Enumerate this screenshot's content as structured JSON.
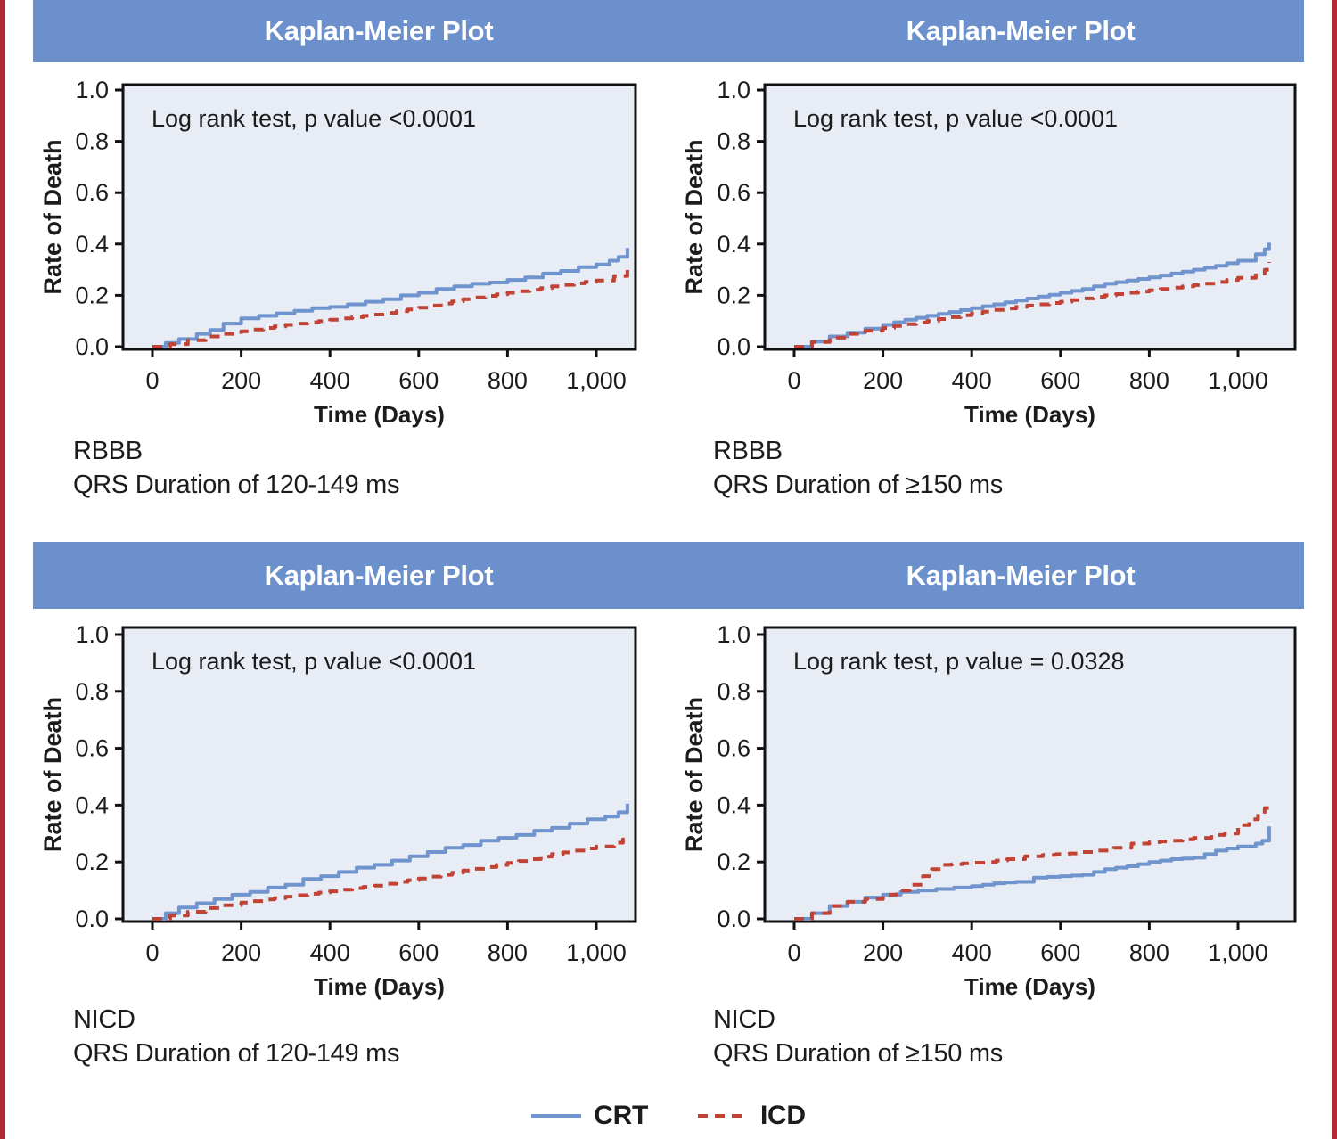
{
  "colors": {
    "border_red": "#b02b35",
    "banner_blue": "#6b90cb",
    "plot_background": "#e8ecf5",
    "frame_black": "#111111",
    "crt_blue": "#7094cd",
    "icd_red": "#c04335",
    "text": "#1c1c1c",
    "banner_text": "#ffffff"
  },
  "legend": {
    "items": [
      {
        "label": "CRT",
        "style": "solid",
        "color": "#7094cd"
      },
      {
        "label": "ICD",
        "style": "dashed",
        "color": "#c04335"
      }
    ]
  },
  "chart_data": [
    {
      "type": "line",
      "title": "Kaplan-Meier Plot",
      "annotation": "Log rank test, p value <0.0001",
      "caption1": "RBBB",
      "caption2": "QRS Duration of 120-149 ms",
      "xlabel": "Time (Days)",
      "ylabel": "Rate of Death",
      "xlim": [
        0,
        1130
      ],
      "ylim": [
        0,
        1.0
      ],
      "xticks": [
        0,
        200,
        400,
        600,
        800,
        1000
      ],
      "xtick_labels": [
        "0",
        "200",
        "400",
        "600",
        "800",
        "1,000"
      ],
      "ytick_labels": [
        "0.0",
        "0.2",
        "0.4",
        "0.6",
        "0.8",
        "1.0"
      ],
      "grid": false,
      "legend_position": "bottom-figure",
      "series": [
        {
          "name": "CRT",
          "style": "solid",
          "color": "#7094cd",
          "points": [
            [
              0,
              0
            ],
            [
              30,
              0.015
            ],
            [
              60,
              0.03
            ],
            [
              100,
              0.05
            ],
            [
              130,
              0.065
            ],
            [
              160,
              0.09
            ],
            [
              200,
              0.11
            ],
            [
              240,
              0.12
            ],
            [
              280,
              0.13
            ],
            [
              320,
              0.14
            ],
            [
              360,
              0.15
            ],
            [
              400,
              0.155
            ],
            [
              440,
              0.165
            ],
            [
              480,
              0.175
            ],
            [
              520,
              0.185
            ],
            [
              560,
              0.2
            ],
            [
              600,
              0.21
            ],
            [
              640,
              0.225
            ],
            [
              680,
              0.235
            ],
            [
              720,
              0.245
            ],
            [
              760,
              0.25
            ],
            [
              800,
              0.26
            ],
            [
              840,
              0.27
            ],
            [
              880,
              0.285
            ],
            [
              920,
              0.295
            ],
            [
              960,
              0.31
            ],
            [
              1000,
              0.32
            ],
            [
              1030,
              0.335
            ],
            [
              1050,
              0.35
            ],
            [
              1070,
              0.385
            ]
          ]
        },
        {
          "name": "ICD",
          "style": "dashed",
          "color": "#c04335",
          "points": [
            [
              0,
              0
            ],
            [
              40,
              0.01
            ],
            [
              80,
              0.025
            ],
            [
              120,
              0.04
            ],
            [
              160,
              0.05
            ],
            [
              200,
              0.06
            ],
            [
              250,
              0.073
            ],
            [
              300,
              0.085
            ],
            [
              350,
              0.095
            ],
            [
              400,
              0.105
            ],
            [
              450,
              0.115
            ],
            [
              500,
              0.125
            ],
            [
              550,
              0.138
            ],
            [
              600,
              0.152
            ],
            [
              650,
              0.168
            ],
            [
              700,
              0.185
            ],
            [
              750,
              0.198
            ],
            [
              800,
              0.21
            ],
            [
              850,
              0.222
            ],
            [
              900,
              0.235
            ],
            [
              950,
              0.247
            ],
            [
              1000,
              0.258
            ],
            [
              1040,
              0.275
            ],
            [
              1070,
              0.305
            ]
          ]
        }
      ]
    },
    {
      "type": "line",
      "title": "Kaplan-Meier Plot",
      "annotation": "Log rank test, p value <0.0001",
      "caption1": "RBBB",
      "caption2": "QRS Duration of ≥150 ms",
      "xlabel": "Time (Days)",
      "ylabel": "Rate of Death",
      "xlim": [
        0,
        1130
      ],
      "ylim": [
        0,
        1.0
      ],
      "xticks": [
        0,
        200,
        400,
        600,
        800,
        1000
      ],
      "xtick_labels": [
        "0",
        "200",
        "400",
        "600",
        "800",
        "1,000"
      ],
      "ytick_labels": [
        "0.0",
        "0.2",
        "0.4",
        "0.6",
        "0.8",
        "1.0"
      ],
      "grid": false,
      "legend_position": "bottom-figure",
      "series": [
        {
          "name": "CRT",
          "style": "solid",
          "color": "#7094cd",
          "points": [
            [
              0,
              0
            ],
            [
              40,
              0.02
            ],
            [
              80,
              0.04
            ],
            [
              120,
              0.055
            ],
            [
              160,
              0.07
            ],
            [
              200,
              0.085
            ],
            [
              250,
              0.105
            ],
            [
              300,
              0.12
            ],
            [
              350,
              0.135
            ],
            [
              400,
              0.15
            ],
            [
              450,
              0.165
            ],
            [
              500,
              0.18
            ],
            [
              550,
              0.195
            ],
            [
              600,
              0.21
            ],
            [
              650,
              0.225
            ],
            [
              700,
              0.245
            ],
            [
              750,
              0.258
            ],
            [
              800,
              0.27
            ],
            [
              850,
              0.285
            ],
            [
              900,
              0.3
            ],
            [
              950,
              0.315
            ],
            [
              1000,
              0.335
            ],
            [
              1040,
              0.36
            ],
            [
              1060,
              0.38
            ],
            [
              1070,
              0.405
            ]
          ]
        },
        {
          "name": "ICD",
          "style": "dashed",
          "color": "#c04335",
          "points": [
            [
              0,
              0
            ],
            [
              40,
              0.018
            ],
            [
              80,
              0.035
            ],
            [
              120,
              0.05
            ],
            [
              160,
              0.062
            ],
            [
              200,
              0.073
            ],
            [
              250,
              0.088
            ],
            [
              300,
              0.1
            ],
            [
              350,
              0.115
            ],
            [
              400,
              0.13
            ],
            [
              450,
              0.143
            ],
            [
              500,
              0.155
            ],
            [
              550,
              0.165
            ],
            [
              600,
              0.175
            ],
            [
              650,
              0.188
            ],
            [
              700,
              0.2
            ],
            [
              750,
              0.21
            ],
            [
              800,
              0.22
            ],
            [
              850,
              0.23
            ],
            [
              900,
              0.24
            ],
            [
              950,
              0.252
            ],
            [
              1000,
              0.268
            ],
            [
              1040,
              0.285
            ],
            [
              1060,
              0.3
            ],
            [
              1070,
              0.33
            ]
          ]
        }
      ]
    },
    {
      "type": "line",
      "title": "Kaplan-Meier Plot",
      "annotation": "Log rank test, p value <0.0001",
      "caption1": "NICD",
      "caption2": "QRS Duration of 120-149 ms",
      "xlabel": "Time (Days)",
      "ylabel": "Rate of Death",
      "xlim": [
        0,
        1130
      ],
      "ylim": [
        0,
        1.0
      ],
      "xticks": [
        0,
        200,
        400,
        600,
        800,
        1000
      ],
      "xtick_labels": [
        "0",
        "200",
        "400",
        "600",
        "800",
        "1,000"
      ],
      "ytick_labels": [
        "0.0",
        "0.2",
        "0.4",
        "0.6",
        "0.8",
        "1.0"
      ],
      "grid": false,
      "legend_position": "bottom-figure",
      "series": [
        {
          "name": "CRT",
          "style": "solid",
          "color": "#7094cd",
          "points": [
            [
              0,
              0
            ],
            [
              30,
              0.02
            ],
            [
              60,
              0.04
            ],
            [
              100,
              0.055
            ],
            [
              140,
              0.07
            ],
            [
              180,
              0.085
            ],
            [
              220,
              0.095
            ],
            [
              260,
              0.11
            ],
            [
              300,
              0.12
            ],
            [
              340,
              0.14
            ],
            [
              380,
              0.15
            ],
            [
              420,
              0.165
            ],
            [
              460,
              0.18
            ],
            [
              500,
              0.19
            ],
            [
              540,
              0.205
            ],
            [
              580,
              0.22
            ],
            [
              620,
              0.235
            ],
            [
              660,
              0.25
            ],
            [
              700,
              0.26
            ],
            [
              740,
              0.275
            ],
            [
              780,
              0.285
            ],
            [
              820,
              0.295
            ],
            [
              860,
              0.31
            ],
            [
              900,
              0.32
            ],
            [
              940,
              0.335
            ],
            [
              980,
              0.35
            ],
            [
              1020,
              0.36
            ],
            [
              1050,
              0.375
            ],
            [
              1070,
              0.405
            ]
          ]
        },
        {
          "name": "ICD",
          "style": "dashed",
          "color": "#c04335",
          "points": [
            [
              0,
              0
            ],
            [
              40,
              0.012
            ],
            [
              80,
              0.025
            ],
            [
              120,
              0.038
            ],
            [
              160,
              0.048
            ],
            [
              200,
              0.057
            ],
            [
              250,
              0.068
            ],
            [
              300,
              0.078
            ],
            [
              350,
              0.088
            ],
            [
              400,
              0.097
            ],
            [
              450,
              0.108
            ],
            [
              500,
              0.117
            ],
            [
              550,
              0.13
            ],
            [
              600,
              0.142
            ],
            [
              650,
              0.155
            ],
            [
              700,
              0.17
            ],
            [
              750,
              0.182
            ],
            [
              800,
              0.197
            ],
            [
              850,
              0.21
            ],
            [
              900,
              0.228
            ],
            [
              950,
              0.24
            ],
            [
              1000,
              0.255
            ],
            [
              1040,
              0.268
            ],
            [
              1060,
              0.28
            ],
            [
              1070,
              0.295
            ]
          ]
        }
      ]
    },
    {
      "type": "line",
      "title": "Kaplan-Meier Plot",
      "annotation": "Log rank test, p value = 0.0328",
      "caption1": "NICD",
      "caption2": "QRS Duration of ≥150 ms",
      "xlabel": "Time (Days)",
      "ylabel": "Rate of Death",
      "xlim": [
        0,
        1130
      ],
      "ylim": [
        0,
        1.0
      ],
      "xticks": [
        0,
        200,
        400,
        600,
        800,
        1000
      ],
      "xtick_labels": [
        "0",
        "200",
        "400",
        "600",
        "800",
        "1,000"
      ],
      "ytick_labels": [
        "0.0",
        "0.2",
        "0.4",
        "0.6",
        "0.8",
        "1.0"
      ],
      "grid": false,
      "legend_position": "bottom-figure",
      "series": [
        {
          "name": "CRT",
          "style": "solid",
          "color": "#7094cd",
          "points": [
            [
              0,
              0
            ],
            [
              40,
              0.02
            ],
            [
              80,
              0.045
            ],
            [
              120,
              0.06
            ],
            [
              160,
              0.075
            ],
            [
              200,
              0.085
            ],
            [
              240,
              0.095
            ],
            [
              280,
              0.1
            ],
            [
              320,
              0.105
            ],
            [
              360,
              0.11
            ],
            [
              400,
              0.115
            ],
            [
              450,
              0.125
            ],
            [
              500,
              0.13
            ],
            [
              540,
              0.145
            ],
            [
              600,
              0.15
            ],
            [
              650,
              0.155
            ],
            [
              700,
              0.175
            ],
            [
              750,
              0.185
            ],
            [
              800,
              0.2
            ],
            [
              850,
              0.21
            ],
            [
              900,
              0.215
            ],
            [
              950,
              0.24
            ],
            [
              1000,
              0.255
            ],
            [
              1040,
              0.265
            ],
            [
              1055,
              0.275
            ],
            [
              1070,
              0.325
            ]
          ]
        },
        {
          "name": "ICD",
          "style": "dashed",
          "color": "#c04335",
          "points": [
            [
              0,
              0
            ],
            [
              40,
              0.02
            ],
            [
              80,
              0.045
            ],
            [
              120,
              0.06
            ],
            [
              160,
              0.07
            ],
            [
              200,
              0.085
            ],
            [
              230,
              0.1
            ],
            [
              260,
              0.12
            ],
            [
              290,
              0.15
            ],
            [
              310,
              0.175
            ],
            [
              330,
              0.19
            ],
            [
              380,
              0.195
            ],
            [
              430,
              0.2
            ],
            [
              480,
              0.21
            ],
            [
              520,
              0.22
            ],
            [
              560,
              0.225
            ],
            [
              620,
              0.23
            ],
            [
              680,
              0.24
            ],
            [
              720,
              0.25
            ],
            [
              760,
              0.265
            ],
            [
              800,
              0.27
            ],
            [
              850,
              0.275
            ],
            [
              900,
              0.285
            ],
            [
              940,
              0.295
            ],
            [
              970,
              0.3
            ],
            [
              1000,
              0.33
            ],
            [
              1025,
              0.35
            ],
            [
              1045,
              0.37
            ],
            [
              1060,
              0.39
            ],
            [
              1070,
              0.41
            ]
          ]
        }
      ]
    }
  ]
}
